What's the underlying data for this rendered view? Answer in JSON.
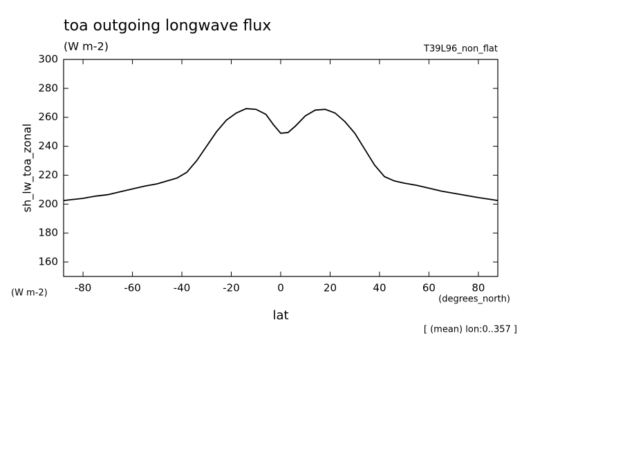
{
  "chart_data": {
    "type": "line",
    "title": "toa outgoing longwave flux",
    "subtitle": "(W m-2)",
    "dataset": "T39L96_non_flat",
    "y_label": "sh_lw_toa_zonal",
    "y_units": "(W m-2)",
    "x_label": "lat",
    "x_units": "(degrees_north)",
    "annotation": "[ (mean) lon:0..357 ]",
    "color": "#000000",
    "x": [
      -87.86,
      -80,
      -75,
      -70,
      -65,
      -60,
      -55,
      -50,
      -45,
      -42,
      -38,
      -34,
      -30,
      -26,
      -22,
      -18,
      -14,
      -10,
      -6,
      -3,
      0,
      3,
      6,
      10,
      14,
      18,
      22,
      26,
      30,
      34,
      38,
      42,
      46,
      50,
      55,
      60,
      65,
      70,
      75,
      80,
      84,
      87.86
    ],
    "values": [
      202.5,
      204,
      205.5,
      206.5,
      208.5,
      210.5,
      212.5,
      214,
      216.5,
      218,
      222,
      230,
      240,
      250,
      258,
      263,
      266,
      265.5,
      262,
      255,
      249,
      249.5,
      254,
      261,
      265,
      265.5,
      263,
      257,
      249,
      238,
      227,
      219,
      216,
      214.5,
      213,
      211,
      209,
      207.5,
      206,
      204.5,
      203.5,
      202.5
    ],
    "xlim": [
      -87.86,
      87.86
    ],
    "ylim": [
      150,
      300
    ],
    "xticks": [
      -80,
      -60,
      -40,
      -20,
      0,
      20,
      40,
      60,
      80
    ],
    "yticks": [
      160,
      180,
      200,
      220,
      240,
      260,
      280,
      300
    ]
  }
}
